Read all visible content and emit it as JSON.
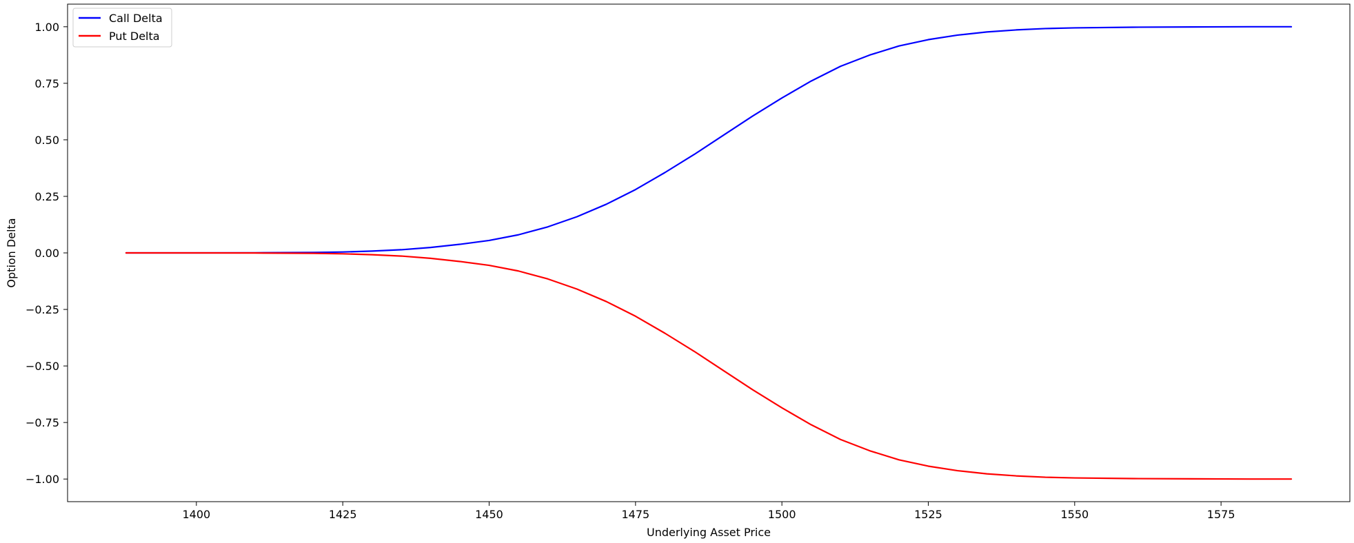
{
  "chart_data": {
    "type": "line",
    "title": "",
    "xlabel": "Underlying Asset Price",
    "ylabel": "Option Delta",
    "xlim": [
      1378,
      1597
    ],
    "ylim": [
      -1.1,
      1.1
    ],
    "x_ticks": [
      1400,
      1425,
      1450,
      1475,
      1500,
      1525,
      1550,
      1575
    ],
    "x_tick_labels": [
      "1400",
      "1425",
      "1450",
      "1475",
      "1500",
      "1525",
      "1550",
      "1575"
    ],
    "y_ticks": [
      1.0,
      0.75,
      0.5,
      0.25,
      0.0,
      -0.25,
      -0.5,
      -0.75,
      -1.0
    ],
    "y_tick_labels": [
      "1.00",
      "0.75",
      "0.50",
      "0.25",
      "0.00",
      "−0.25",
      "−0.50",
      "−0.75",
      "−1.00"
    ],
    "grid": false,
    "legend": "top-left",
    "x": [
      1388,
      1400,
      1410,
      1420,
      1425,
      1430,
      1435,
      1440,
      1445,
      1450,
      1455,
      1460,
      1465,
      1470,
      1475,
      1480,
      1485,
      1490,
      1495,
      1500,
      1505,
      1510,
      1515,
      1520,
      1525,
      1530,
      1535,
      1540,
      1545,
      1550,
      1560,
      1570,
      1580,
      1587
    ],
    "series": [
      {
        "name": "Call Delta",
        "color": "#0000ff",
        "values": [
          0.0,
          0.0,
          0.0005,
          0.002,
          0.004,
          0.008,
          0.014,
          0.024,
          0.038,
          0.055,
          0.08,
          0.115,
          0.16,
          0.215,
          0.28,
          0.355,
          0.435,
          0.52,
          0.605,
          0.685,
          0.76,
          0.825,
          0.875,
          0.915,
          0.943,
          0.963,
          0.977,
          0.986,
          0.992,
          0.995,
          0.998,
          0.999,
          1.0,
          1.0
        ]
      },
      {
        "name": "Put Delta",
        "color": "#ff0000",
        "values": [
          0.0,
          0.0,
          -0.0005,
          -0.002,
          -0.004,
          -0.008,
          -0.014,
          -0.024,
          -0.038,
          -0.055,
          -0.08,
          -0.115,
          -0.16,
          -0.215,
          -0.28,
          -0.355,
          -0.435,
          -0.52,
          -0.605,
          -0.685,
          -0.76,
          -0.825,
          -0.875,
          -0.915,
          -0.943,
          -0.963,
          -0.977,
          -0.986,
          -0.992,
          -0.995,
          -0.998,
          -0.999,
          -1.0,
          -1.0
        ]
      }
    ]
  }
}
